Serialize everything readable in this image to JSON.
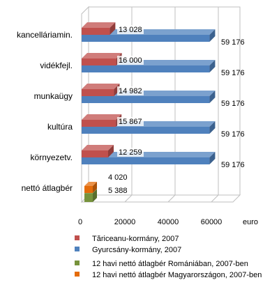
{
  "chart_data": {
    "type": "bar",
    "orientation": "horizontal",
    "three_d": true,
    "categories": [
      "kancelláriamin.",
      "vidékfejl.",
      "munkaügy",
      "kultúra",
      "környezetv.",
      "nettó átlagbér"
    ],
    "series": [
      {
        "name": "Tăriceanu-kormány, 2007",
        "color": "#C0504D",
        "values": [
          13028,
          16000,
          14982,
          15867,
          12259,
          null
        ],
        "labels": [
          "13 028",
          "16 000",
          "14 982",
          "15 867",
          "12 259",
          null
        ]
      },
      {
        "name": "Gyurcsány-kormány, 2007",
        "color": "#4F81BD",
        "values": [
          59176,
          59176,
          59176,
          59176,
          59176,
          null
        ],
        "labels": [
          "59 176",
          "59 176",
          "59 176",
          "59 176",
          "59 176",
          null
        ]
      },
      {
        "name": "12 havi nettó átlagbér Romániában, 2007-ben",
        "color": "#77933C",
        "values": [
          null,
          null,
          null,
          null,
          null,
          4020
        ],
        "labels": [
          null,
          null,
          null,
          null,
          null,
          "4 020"
        ]
      },
      {
        "name": "12 havi nettó átlagbér Magyarországon, 2007-ben",
        "color": "#E46C0A",
        "values": [
          null,
          null,
          null,
          null,
          null,
          5388
        ],
        "labels": [
          null,
          null,
          null,
          null,
          null,
          "5 388"
        ]
      }
    ],
    "x_ticks": [
      "0",
      "20000",
      "40000",
      "60000"
    ],
    "xlim": [
      0,
      70000
    ],
    "x_unit": "euro",
    "title": "",
    "xlabel": "",
    "ylabel": "",
    "grid": true,
    "legend_position": "bottom"
  }
}
